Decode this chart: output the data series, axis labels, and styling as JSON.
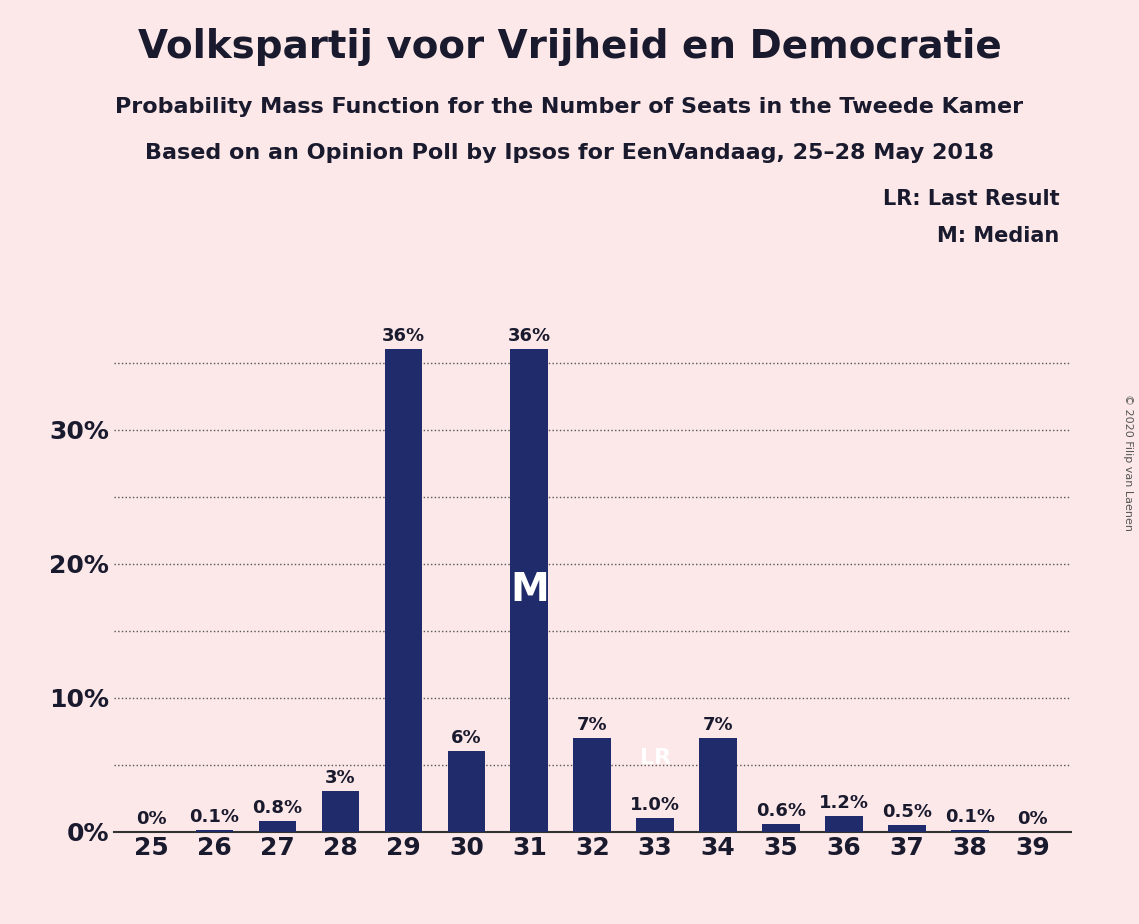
{
  "title": "Volkspartij voor Vrijheid en Democratie",
  "subtitle1": "Probability Mass Function for the Number of Seats in the Tweede Kamer",
  "subtitle2": "Based on an Opinion Poll by Ipsos for EenVandaag, 25–28 May 2018",
  "copyright": "© 2020 Filip van Laenen",
  "categories": [
    25,
    26,
    27,
    28,
    29,
    30,
    31,
    32,
    33,
    34,
    35,
    36,
    37,
    38,
    39
  ],
  "values": [
    0.0,
    0.1,
    0.8,
    3.0,
    36.0,
    6.0,
    36.0,
    7.0,
    1.0,
    7.0,
    0.6,
    1.2,
    0.5,
    0.1,
    0.0
  ],
  "labels": [
    "0%",
    "0.1%",
    "0.8%",
    "3%",
    "36%",
    "6%",
    "36%",
    "7%",
    "1.0%",
    "7%",
    "0.6%",
    "1.2%",
    "0.5%",
    "0.1%",
    "0%"
  ],
  "bar_color": "#1f2b6b",
  "background_color": "#fce8e8",
  "yticks": [
    0,
    10,
    20,
    30
  ],
  "ylim": [
    0,
    40
  ],
  "median_seat": 31,
  "lr_seat": 33,
  "legend_lr": "LR: Last Result",
  "legend_m": "M: Median",
  "title_fontsize": 28,
  "subtitle_fontsize": 16,
  "label_fontsize": 13,
  "axis_fontsize": 18,
  "legend_fontsize": 15,
  "copyright_fontsize": 8,
  "dotted_gridlines": [
    5,
    10,
    15,
    20,
    25,
    30,
    35
  ],
  "text_color": "#1a1a2e"
}
